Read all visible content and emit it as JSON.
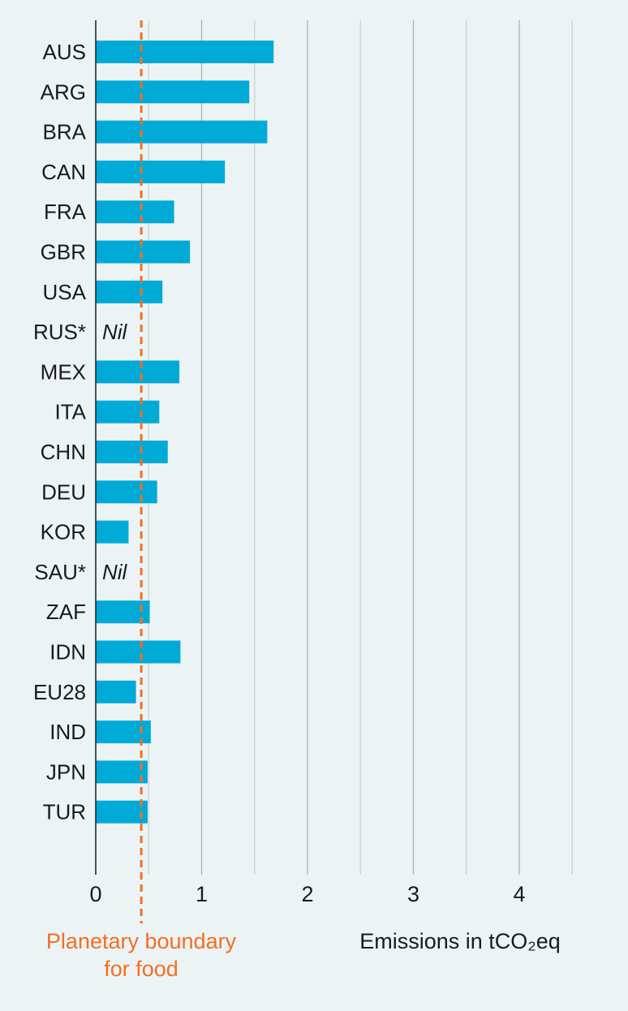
{
  "chart_data": {
    "type": "bar",
    "orientation": "horizontal",
    "categories": [
      "AUS",
      "ARG",
      "BRA",
      "CAN",
      "FRA",
      "GBR",
      "USA",
      "RUS*",
      "MEX",
      "ITA",
      "CHN",
      "DEU",
      "KOR",
      "SAU*",
      "ZAF",
      "IDN",
      "EU28",
      "IND",
      "JPN",
      "TUR"
    ],
    "values": [
      1.68,
      1.45,
      1.62,
      1.22,
      0.74,
      0.89,
      0.63,
      null,
      0.79,
      0.6,
      0.68,
      0.58,
      0.31,
      null,
      0.51,
      0.8,
      0.38,
      0.52,
      0.49,
      0.49
    ],
    "missing_label": "Nil",
    "xlim": [
      0,
      4.5
    ],
    "ticks": [
      0,
      1,
      2,
      3,
      4
    ],
    "tick_labels": [
      "0",
      "1",
      "2",
      "3",
      "4"
    ],
    "minor_grid_step": 0.5,
    "xlabel": "Emissions in tCO₂eq",
    "reference_line": {
      "value": 0.43,
      "label_lines": [
        "Planetary boundary",
        "for food"
      ],
      "color": "#f26f21",
      "style": "dashed"
    },
    "bar_color": "#00aad6",
    "grid": true
  }
}
